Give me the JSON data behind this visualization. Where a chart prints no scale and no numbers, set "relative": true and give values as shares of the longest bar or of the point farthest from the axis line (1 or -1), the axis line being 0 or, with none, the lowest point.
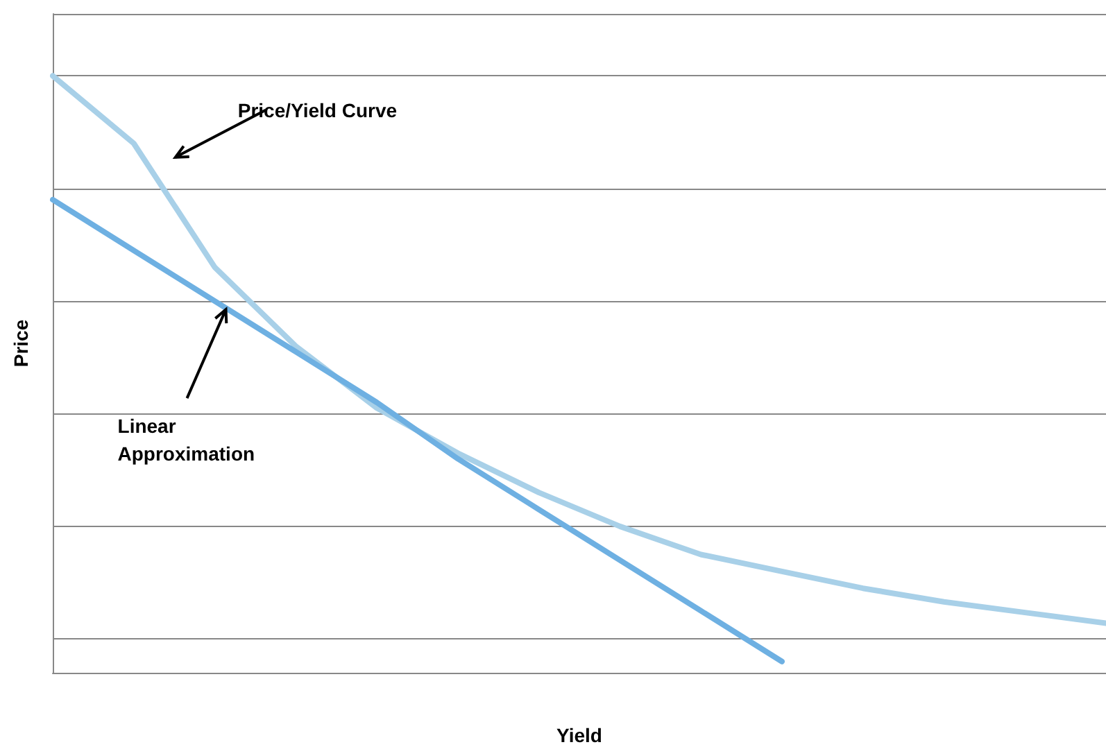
{
  "chart_data": {
    "type": "line",
    "relative": true,
    "xlabel": "Yield",
    "ylabel": "Price",
    "categories": [
      null,
      null,
      null,
      null,
      null,
      null,
      null,
      null,
      null,
      null,
      null,
      null,
      null,
      null
    ],
    "series": [
      {
        "color": "#a8d0e8",
        "values": [
          1.0,
          0.88,
          0.66,
          0.52,
          0.41,
          0.33,
          0.26,
          0.2,
          0.15,
          0.12,
          0.09,
          0.066,
          0.047,
          0.028
        ]
      },
      {
        "color": "#6eb0e2",
        "values": [
          0.78,
          0.69,
          0.6,
          0.51,
          0.42,
          0.32,
          0.23,
          0.14,
          0.05,
          -0.04,
          null,
          null,
          null,
          null
        ]
      }
    ],
    "annotations": [
      "Price/Yield Curve",
      "Linear Approximation"
    ],
    "grid": "y",
    "marker": "none",
    "line_style": "solid"
  }
}
